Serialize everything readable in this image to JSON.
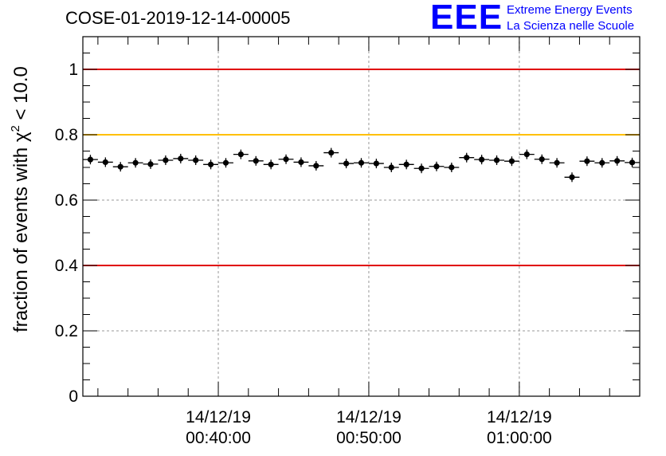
{
  "header": {
    "title": "COSE-01-2019-12-14-00005"
  },
  "logo": {
    "mark": "EEE",
    "line1": "Extreme Energy Events",
    "line2": "La Scienza nelle Scuole"
  },
  "colors": {
    "limit_red": "#e00000",
    "limit_orange": "#ffc000",
    "markers": "#000000",
    "grid": "#999999"
  },
  "chart_data": {
    "type": "scatter",
    "title": "COSE-01-2019-12-14-00005",
    "xlabel": "",
    "ylabel": "fraction of events with",
    "ylabel_symbol": "χ",
    "ylabel_exp": "2",
    "ylabel_tail": " < 10.0",
    "ylim": [
      0,
      1.1
    ],
    "xlim_minutes": [
      31,
      68
    ],
    "grid": true,
    "y_ticks": [
      {
        "value": 0,
        "label": "0"
      },
      {
        "value": 0.2,
        "label": "0.2"
      },
      {
        "value": 0.4,
        "label": "0.4"
      },
      {
        "value": 0.6,
        "label": "0.6"
      },
      {
        "value": 0.8,
        "label": "0.8"
      },
      {
        "value": 1.0,
        "label": "1"
      }
    ],
    "x_ticks": [
      {
        "minute": 40,
        "date": "14/12/19",
        "time": "00:40:00"
      },
      {
        "minute": 50,
        "date": "14/12/19",
        "time": "00:50:00"
      },
      {
        "minute": 60,
        "date": "14/12/19",
        "time": "01:00:00"
      }
    ],
    "x_bin_width_minutes": 1,
    "x_start_minute": 31,
    "values": [
      0.724,
      0.716,
      0.702,
      0.714,
      0.71,
      0.722,
      0.727,
      0.722,
      0.709,
      0.714,
      0.74,
      0.72,
      0.709,
      0.725,
      0.716,
      0.705,
      0.745,
      0.712,
      0.714,
      0.712,
      0.7,
      0.709,
      0.697,
      0.703,
      0.7,
      0.73,
      0.724,
      0.722,
      0.719,
      0.74,
      0.725,
      0.714,
      0.67,
      0.719,
      0.714,
      0.72,
      0.715
    ],
    "reference_lines": [
      {
        "value": 1.0,
        "color": "#e00000"
      },
      {
        "value": 0.8,
        "color": "#ffc000"
      },
      {
        "value": 0.4,
        "color": "#e00000"
      }
    ]
  }
}
